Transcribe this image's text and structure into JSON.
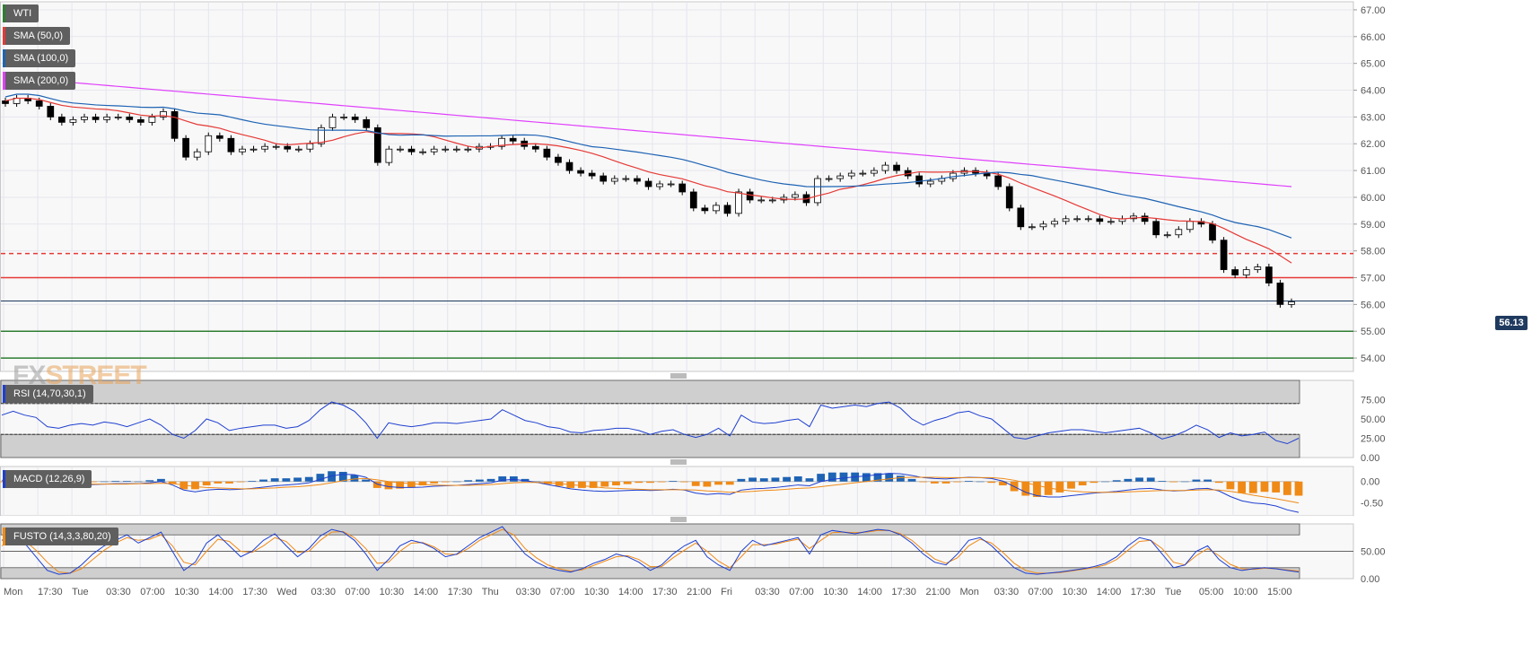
{
  "chart_data": [
    {
      "name": "price",
      "type": "candlestick",
      "legend": [
        {
          "label": "WTI",
          "color": "#2e7d32"
        },
        {
          "label": "SMA (50,0)",
          "color": "#e53935"
        },
        {
          "label": "SMA (100,0)",
          "color": "#1e63b4"
        },
        {
          "label": "SMA (200,0)",
          "color": "#e040fb"
        }
      ],
      "y_ticks": [
        "67.00",
        "66.00",
        "65.00",
        "64.00",
        "63.00",
        "62.00",
        "61.00",
        "60.00",
        "59.00",
        "58.00",
        "57.00",
        "56.00",
        "55.00",
        "54.00"
      ],
      "ylim": [
        53.5,
        67.3
      ],
      "last_price": "56.13",
      "levels": [
        {
          "value": 57.9,
          "color": "#e53935",
          "style": "dashed"
        },
        {
          "value": 57.0,
          "color": "#e53935",
          "style": "solid"
        },
        {
          "value": 56.13,
          "color": "#1f3a5f",
          "style": "solid"
        },
        {
          "value": 55.0,
          "color": "#2e7d32",
          "style": "solid"
        },
        {
          "value": 54.0,
          "color": "#2e7d32",
          "style": "solid"
        }
      ],
      "close": [
        63.5,
        63.7,
        63.6,
        63.4,
        63.0,
        62.8,
        62.9,
        63.0,
        62.9,
        63.0,
        63.0,
        62.9,
        62.8,
        63.0,
        63.2,
        62.2,
        61.5,
        61.7,
        62.3,
        62.2,
        61.7,
        61.8,
        61.8,
        61.9,
        61.9,
        61.8,
        61.8,
        62.0,
        62.6,
        63.0,
        63.0,
        62.9,
        62.6,
        61.3,
        61.8,
        61.8,
        61.7,
        61.7,
        61.8,
        61.8,
        61.8,
        61.8,
        61.9,
        61.9,
        62.2,
        62.1,
        61.9,
        61.8,
        61.5,
        61.3,
        61.0,
        60.9,
        60.8,
        60.6,
        60.7,
        60.7,
        60.6,
        60.4,
        60.5,
        60.5,
        60.2,
        59.6,
        59.5,
        59.7,
        59.4,
        60.2,
        59.9,
        59.9,
        59.9,
        60.0,
        60.1,
        59.8,
        60.7,
        60.7,
        60.8,
        60.9,
        60.9,
        61.0,
        61.2,
        61.0,
        60.8,
        60.5,
        60.6,
        60.7,
        60.9,
        61.0,
        60.9,
        60.8,
        60.4,
        59.6,
        58.9,
        58.9,
        59.0,
        59.1,
        59.2,
        59.2,
        59.2,
        59.1,
        59.1,
        59.2,
        59.3,
        59.1,
        58.6,
        58.6,
        58.8,
        59.1,
        59.0,
        58.4,
        57.3,
        57.1,
        57.3,
        57.4,
        56.8,
        56.0,
        56.1
      ]
    },
    {
      "name": "rsi",
      "type": "line",
      "legend": [
        {
          "label": "RSI (14,70,30,1)",
          "color": "#1e3fd0"
        }
      ],
      "y_ticks": [
        "75.00",
        "50.00",
        "25.00",
        "0.00"
      ],
      "ylim": [
        0,
        100
      ],
      "bands": [
        70,
        30
      ],
      "values": [
        55,
        60,
        55,
        52,
        40,
        38,
        42,
        44,
        42,
        46,
        44,
        40,
        45,
        50,
        42,
        30,
        25,
        35,
        50,
        45,
        35,
        38,
        40,
        42,
        42,
        38,
        40,
        48,
        62,
        72,
        68,
        60,
        45,
        25,
        45,
        42,
        40,
        42,
        45,
        45,
        44,
        46,
        48,
        50,
        62,
        55,
        48,
        45,
        40,
        38,
        33,
        32,
        35,
        36,
        38,
        38,
        35,
        30,
        34,
        36,
        30,
        26,
        30,
        38,
        28,
        55,
        46,
        44,
        45,
        48,
        50,
        40,
        68,
        64,
        66,
        68,
        66,
        70,
        72,
        64,
        50,
        42,
        48,
        52,
        58,
        60,
        54,
        50,
        38,
        26,
        24,
        28,
        32,
        34,
        36,
        36,
        34,
        32,
        34,
        36,
        38,
        32,
        24,
        28,
        34,
        42,
        36,
        26,
        32,
        28,
        30,
        33,
        22,
        18,
        25
      ]
    },
    {
      "name": "macd",
      "type": "macd",
      "legend": [
        {
          "label": "MACD (12,26,9)",
          "color": "#1e3fd0"
        }
      ],
      "y_ticks": [
        "0.00",
        "-0.50"
      ],
      "ylim": [
        -0.8,
        0.35
      ],
      "macd": [
        0.02,
        0.03,
        0.02,
        0.0,
        -0.05,
        -0.08,
        -0.08,
        -0.07,
        -0.07,
        -0.06,
        -0.05,
        -0.05,
        -0.05,
        -0.03,
        0.0,
        -0.08,
        -0.2,
        -0.24,
        -0.2,
        -0.18,
        -0.19,
        -0.18,
        -0.16,
        -0.13,
        -0.1,
        -0.08,
        -0.06,
        -0.03,
        0.05,
        0.13,
        0.17,
        0.16,
        0.1,
        -0.06,
        -0.12,
        -0.14,
        -0.14,
        -0.13,
        -0.11,
        -0.1,
        -0.09,
        -0.07,
        -0.05,
        -0.03,
        0.03,
        0.05,
        0.02,
        -0.02,
        -0.07,
        -0.12,
        -0.17,
        -0.2,
        -0.22,
        -0.23,
        -0.22,
        -0.21,
        -0.2,
        -0.21,
        -0.2,
        -0.18,
        -0.2,
        -0.27,
        -0.3,
        -0.28,
        -0.3,
        -0.2,
        -0.17,
        -0.16,
        -0.14,
        -0.11,
        -0.08,
        -0.1,
        0.0,
        0.05,
        0.08,
        0.11,
        0.13,
        0.16,
        0.19,
        0.18,
        0.14,
        0.09,
        0.07,
        0.06,
        0.08,
        0.1,
        0.09,
        0.07,
        0.01,
        -0.12,
        -0.25,
        -0.33,
        -0.36,
        -0.36,
        -0.33,
        -0.3,
        -0.27,
        -0.25,
        -0.23,
        -0.2,
        -0.17,
        -0.16,
        -0.2,
        -0.22,
        -0.21,
        -0.17,
        -0.16,
        -0.22,
        -0.35,
        -0.45,
        -0.5,
        -0.52,
        -0.57,
        -0.66,
        -0.72
      ],
      "signal": [
        0.03,
        0.03,
        0.03,
        0.02,
        0.0,
        -0.02,
        -0.04,
        -0.05,
        -0.06,
        -0.06,
        -0.06,
        -0.06,
        -0.05,
        -0.05,
        -0.04,
        -0.05,
        -0.08,
        -0.12,
        -0.14,
        -0.15,
        -0.16,
        -0.17,
        -0.17,
        -0.16,
        -0.15,
        -0.13,
        -0.12,
        -0.1,
        -0.07,
        -0.03,
        0.02,
        0.06,
        0.07,
        0.04,
        0.0,
        -0.03,
        -0.05,
        -0.07,
        -0.08,
        -0.09,
        -0.09,
        -0.09,
        -0.08,
        -0.07,
        -0.05,
        -0.03,
        -0.02,
        -0.02,
        -0.03,
        -0.05,
        -0.07,
        -0.1,
        -0.12,
        -0.15,
        -0.16,
        -0.17,
        -0.18,
        -0.19,
        -0.19,
        -0.19,
        -0.19,
        -0.2,
        -0.22,
        -0.23,
        -0.25,
        -0.24,
        -0.23,
        -0.21,
        -0.2,
        -0.18,
        -0.16,
        -0.15,
        -0.12,
        -0.09,
        -0.06,
        -0.03,
        0.0,
        0.03,
        0.06,
        0.09,
        0.1,
        0.1,
        0.1,
        0.09,
        0.09,
        0.09,
        0.09,
        0.09,
        0.07,
        0.03,
        -0.03,
        -0.09,
        -0.15,
        -0.19,
        -0.22,
        -0.24,
        -0.25,
        -0.25,
        -0.25,
        -0.24,
        -0.23,
        -0.22,
        -0.21,
        -0.21,
        -0.21,
        -0.2,
        -0.19,
        -0.2,
        -0.23,
        -0.27,
        -0.32,
        -0.36,
        -0.4,
        -0.45,
        -0.5
      ]
    },
    {
      "name": "fusto",
      "type": "line",
      "legend": [
        {
          "label": "FUSTO (14,3,3,80,20)",
          "color": "#ef8a17"
        }
      ],
      "y_ticks": [
        "50.00",
        "0.00"
      ],
      "ylim": [
        0,
        100
      ],
      "bands": [
        80,
        20
      ],
      "k": [
        70,
        80,
        65,
        40,
        15,
        8,
        10,
        25,
        45,
        60,
        70,
        80,
        65,
        75,
        85,
        50,
        15,
        30,
        65,
        80,
        60,
        40,
        50,
        70,
        82,
        60,
        40,
        55,
        78,
        90,
        85,
        70,
        45,
        15,
        35,
        60,
        70,
        65,
        55,
        40,
        45,
        60,
        75,
        85,
        95,
        70,
        45,
        30,
        20,
        15,
        12,
        18,
        28,
        35,
        45,
        40,
        30,
        15,
        25,
        45,
        60,
        70,
        40,
        25,
        15,
        50,
        70,
        60,
        65,
        70,
        75,
        45,
        80,
        88,
        85,
        82,
        86,
        90,
        88,
        80,
        65,
        45,
        30,
        25,
        45,
        70,
        75,
        60,
        40,
        20,
        10,
        8,
        10,
        12,
        15,
        18,
        22,
        28,
        40,
        60,
        75,
        70,
        45,
        20,
        25,
        50,
        60,
        35,
        20,
        15,
        18,
        20,
        18,
        15,
        12
      ],
      "d": [
        60,
        72,
        70,
        52,
        30,
        12,
        10,
        18,
        35,
        52,
        65,
        75,
        70,
        72,
        80,
        60,
        30,
        25,
        50,
        72,
        68,
        50,
        48,
        60,
        75,
        68,
        48,
        50,
        70,
        85,
        86,
        75,
        55,
        28,
        30,
        50,
        65,
        66,
        58,
        45,
        44,
        55,
        70,
        80,
        90,
        80,
        55,
        38,
        25,
        18,
        14,
        16,
        24,
        32,
        40,
        42,
        35,
        22,
        22,
        38,
        52,
        65,
        50,
        32,
        20,
        40,
        62,
        62,
        63,
        68,
        72,
        55,
        70,
        84,
        85,
        84,
        85,
        88,
        88,
        82,
        70,
        52,
        36,
        28,
        38,
        60,
        72,
        65,
        48,
        28,
        15,
        10,
        10,
        11,
        14,
        17,
        20,
        25,
        35,
        52,
        68,
        70,
        55,
        30,
        25,
        42,
        55,
        42,
        26,
        18,
        17,
        19,
        18,
        16,
        14
      ]
    }
  ],
  "x_axis": {
    "labels": [
      "Mon",
      "17:30",
      "Tue",
      "03:30",
      "07:00",
      "10:30",
      "14:00",
      "17:30",
      "Wed",
      "03:30",
      "07:00",
      "10:30",
      "14:00",
      "17:30",
      "Thu",
      "03:30",
      "07:00",
      "10:30",
      "14:00",
      "17:30",
      "21:00",
      "Fri",
      "03:30",
      "07:00",
      "10:30",
      "14:00",
      "17:30",
      "21:00",
      "Mon",
      "03:30",
      "07:00",
      "10:30",
      "14:00",
      "17:30",
      "Tue",
      "05:00",
      "10:00",
      "15:00"
    ]
  },
  "watermark": {
    "fx": "FX",
    "street": "STREET"
  },
  "colors": {
    "up": "#ffffff",
    "down": "#000000",
    "sma50": "#e53935",
    "sma100": "#1e63b4",
    "sma200": "#e040fb",
    "rsi": "#1e3fd0",
    "macd_line": "#1e3fd0",
    "macd_signal": "#ef8a17",
    "hist_pos": "#1e63b4",
    "hist_neg": "#ef8a17",
    "fusto_k": "#1e3fd0",
    "fusto_d": "#ef8a17"
  }
}
